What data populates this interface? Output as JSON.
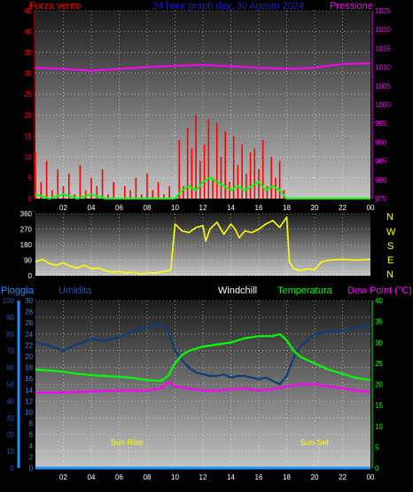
{
  "header": {
    "wind_label": "Forza vento",
    "title": "24 hour graph day, 30 Agosto 2024",
    "pressure_label": "Pressione"
  },
  "middle": {
    "directions": [
      "N",
      "W",
      "S",
      "E",
      "N"
    ]
  },
  "bottom": {
    "rain_label": "Pioggia",
    "humidity_label": "Umidita",
    "windchill_label": "Windchill",
    "temperature_label": "Temperatura",
    "dewpoint_label": "Dew Point (°C)",
    "sunrise_label": "Sun Rise",
    "sunset_label": "Sun Set"
  },
  "colors": {
    "wind": "#ff0000",
    "gust": "#00ff00",
    "pressure": "#ff00ff",
    "direction": "#ffff00",
    "humidity": "#0e3e7a",
    "temperature": "#00ff00",
    "dewpoint": "#ff00ff",
    "rain": "#1e90ff",
    "header_title": "#1f1fcc"
  },
  "chart_data": [
    {
      "type": "line",
      "name": "wind-pressure",
      "x_tick_labels": [
        "02",
        "04",
        "06",
        "08",
        "10",
        "12",
        "14",
        "16",
        "18",
        "20",
        "22",
        "00"
      ],
      "x_range": [
        0,
        24
      ],
      "y_left_range": [
        0,
        45
      ],
      "y_left_ticks": [
        0,
        5,
        10,
        15,
        20,
        25,
        30,
        35,
        40,
        45
      ],
      "y_right_range": [
        975,
        1025
      ],
      "y_right_ticks": [
        975,
        980,
        985,
        990,
        995,
        1000,
        1005,
        1010,
        1015,
        1020,
        1025
      ],
      "grid": true,
      "wind": {
        "x": [
          0.0,
          0.4,
          0.8,
          1.2,
          1.6,
          2.0,
          2.4,
          2.8,
          3.2,
          3.6,
          4.0,
          4.4,
          4.8,
          5.2,
          5.6,
          6.0,
          6.4,
          6.8,
          7.2,
          7.6,
          8.0,
          8.4,
          8.8,
          9.2,
          9.6,
          10.0,
          10.3,
          10.6,
          10.9,
          11.2,
          11.5,
          11.8,
          12.1,
          12.4,
          12.7,
          13.0,
          13.3,
          13.6,
          13.9,
          14.2,
          14.5,
          14.8,
          15.1,
          15.4,
          15.7,
          16.0,
          16.3,
          16.6,
          16.9,
          17.2,
          17.5,
          17.8,
          18.0
        ],
        "values": [
          11,
          4,
          9,
          2,
          7,
          3,
          6,
          1,
          8,
          2,
          5,
          3,
          7,
          1,
          4,
          0,
          3,
          2,
          5,
          1,
          6,
          2,
          4,
          1,
          3,
          0,
          14,
          3,
          17,
          12,
          20,
          9,
          13,
          19,
          5,
          18,
          10,
          16,
          4,
          15,
          8,
          13,
          6,
          11,
          12,
          7,
          14,
          3,
          10,
          5,
          9,
          2,
          0
        ]
      },
      "gust": {
        "x": [
          0,
          1,
          2,
          3,
          4,
          5,
          6,
          7,
          8,
          9,
          10,
          10.5,
          11,
          11.5,
          12,
          12.5,
          13,
          13.5,
          14,
          14.5,
          15,
          15.5,
          16,
          16.5,
          17,
          17.5,
          18,
          24
        ],
        "values": [
          1,
          0,
          1,
          0,
          1,
          0,
          0,
          0,
          0,
          0,
          0,
          2,
          3,
          2,
          4,
          5,
          4,
          3,
          2,
          3,
          2,
          3,
          4,
          2,
          3,
          2,
          0,
          0
        ]
      },
      "pressure": {
        "x": [
          0,
          2,
          4,
          6,
          8,
          10,
          12,
          14,
          16,
          18,
          20,
          22,
          24
        ],
        "values": [
          1009.8,
          1009.5,
          1009.0,
          1009.5,
          1010.0,
          1010.3,
          1010.6,
          1010.2,
          1009.8,
          1009.5,
          1009.8,
          1010.8,
          1011.0
        ]
      }
    },
    {
      "type": "line",
      "name": "wind-direction",
      "y_range": [
        0,
        360
      ],
      "y_ticks": [
        0,
        90,
        180,
        270,
        360
      ],
      "x_range": [
        0,
        24
      ],
      "direction": {
        "x": [
          0,
          0.5,
          1,
          1.5,
          2,
          2.5,
          3,
          3.5,
          4,
          4.5,
          5,
          5.5,
          6,
          6.5,
          7,
          7.5,
          8,
          8.5,
          9,
          9.5,
          9.7,
          10.0,
          10.5,
          11,
          11.5,
          12,
          12.2,
          12.5,
          13,
          13.5,
          14,
          14.3,
          14.6,
          15,
          15.5,
          16,
          16.5,
          17,
          17.5,
          18,
          18.2,
          18.5,
          19,
          19.5,
          20,
          20.5,
          21,
          22,
          23,
          24
        ],
        "values": [
          80,
          95,
          70,
          60,
          75,
          55,
          45,
          60,
          40,
          45,
          30,
          20,
          25,
          15,
          20,
          10,
          18,
          15,
          20,
          30,
          35,
          300,
          260,
          250,
          280,
          290,
          200,
          270,
          310,
          240,
          300,
          270,
          220,
          260,
          250,
          270,
          300,
          320,
          280,
          340,
          80,
          40,
          30,
          40,
          35,
          80,
          90,
          95,
          90,
          95
        ]
      }
    },
    {
      "type": "line",
      "name": "humidity-temperature",
      "x_range": [
        0,
        24
      ],
      "y_left_range": [
        0,
        100
      ],
      "y_left_ticks": [
        0,
        10,
        20,
        30,
        40,
        50,
        60,
        70,
        80,
        90,
        100
      ],
      "y_rain_range": [
        0,
        30
      ],
      "y_rain_ticks": [
        0,
        2,
        4,
        6,
        8,
        10,
        12,
        14,
        16,
        18,
        20,
        22,
        24,
        26,
        28,
        30
      ],
      "y_right_range": [
        0,
        40
      ],
      "y_right_ticks": [
        0,
        5,
        10,
        15,
        20,
        25,
        30,
        35,
        40
      ],
      "sunrise_hour": 6.7,
      "sunset_hour": 20.3,
      "humidity": {
        "x": [
          0,
          1,
          2,
          3,
          4,
          5,
          6,
          7,
          8,
          9,
          9.5,
          10,
          10.5,
          11,
          11.5,
          12,
          12.5,
          13,
          13.5,
          14,
          14.5,
          15,
          15.5,
          16,
          16.5,
          17,
          17.5,
          18,
          18.5,
          19,
          19.5,
          20,
          21,
          22,
          23,
          24
        ],
        "values": [
          75,
          73,
          70,
          74,
          77,
          76,
          78,
          82,
          84,
          86,
          82,
          70,
          64,
          60,
          57,
          56,
          55,
          55,
          56,
          54,
          55,
          55,
          54,
          53,
          54,
          52,
          50,
          55,
          66,
          73,
          76,
          80,
          81,
          82,
          84,
          85
        ]
      },
      "temperature": {
        "x": [
          0,
          1,
          2,
          3,
          4,
          5,
          6,
          7,
          8,
          9,
          9.5,
          10,
          10.5,
          11,
          12,
          13,
          14,
          15,
          16,
          17,
          17.5,
          18,
          18.5,
          19,
          20,
          21,
          22,
          23,
          24
        ],
        "values": [
          23.5,
          23.3,
          23.0,
          22.5,
          22.2,
          22.0,
          21.8,
          21.5,
          21.0,
          20.8,
          22,
          25,
          27,
          28,
          29,
          29.5,
          30,
          31,
          31.5,
          31.5,
          32,
          30.5,
          28,
          26.5,
          25,
          23.5,
          22.5,
          21.5,
          21.0
        ]
      },
      "dewpoint": {
        "x": [
          0,
          2,
          4,
          6,
          8,
          9,
          9.5,
          10,
          11,
          12,
          13,
          14,
          15,
          16,
          17,
          18,
          19,
          20,
          21,
          22,
          23,
          24
        ],
        "values": [
          18.0,
          18.0,
          18.3,
          18.5,
          18.5,
          19.0,
          20.5,
          19.5,
          19.0,
          18.5,
          18.5,
          18.8,
          19.0,
          18.5,
          18.8,
          19.5,
          20.0,
          20.0,
          19.5,
          19.0,
          18.5,
          18.2
        ]
      },
      "rain": {
        "x": [
          0,
          24
        ],
        "values": [
          0,
          0
        ]
      }
    }
  ]
}
